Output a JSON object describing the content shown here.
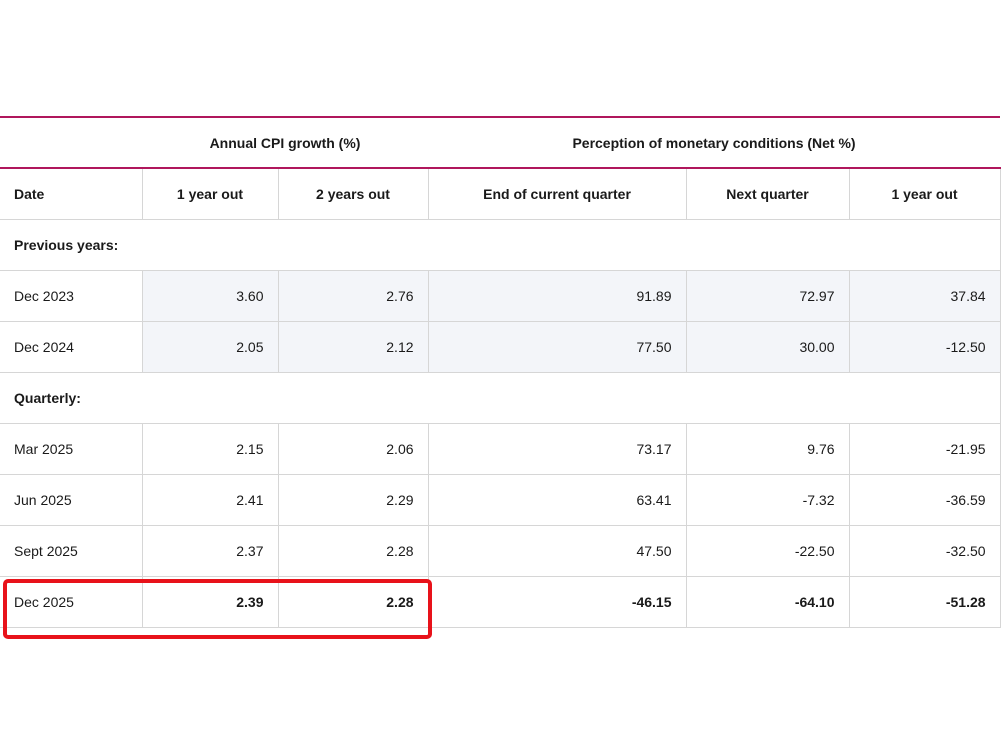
{
  "group_headers": [
    "Annual CPI growth (%)",
    "Perception of monetary conditions (Net %)"
  ],
  "columns": [
    "Date",
    "1 year out",
    "2 years out",
    "End of current quarter",
    "Next quarter",
    "1 year out"
  ],
  "sections": [
    {
      "label": "Previous years:",
      "rows": [
        [
          "Dec 2023",
          "3.60",
          "2.76",
          "91.89",
          "72.97",
          "37.84"
        ],
        [
          "Dec 2024",
          "2.05",
          "2.12",
          "77.50",
          "30.00",
          "-12.50"
        ]
      ]
    },
    {
      "label": "Quarterly:",
      "rows": [
        [
          "Mar 2025",
          "2.15",
          "2.06",
          "73.17",
          "9.76",
          "-21.95"
        ],
        [
          "Jun 2025",
          "2.41",
          "2.29",
          "63.41",
          "-7.32",
          "-36.59"
        ],
        [
          "Sept 2025",
          "2.37",
          "2.28",
          "47.50",
          "-22.50",
          "-32.50"
        ],
        [
          "Dec 2025",
          "2.39",
          "2.28",
          "-46.15",
          "-64.10",
          "-51.28"
        ]
      ]
    }
  ],
  "highlight_color": "#e8121a",
  "accent_color": "#b0175c"
}
